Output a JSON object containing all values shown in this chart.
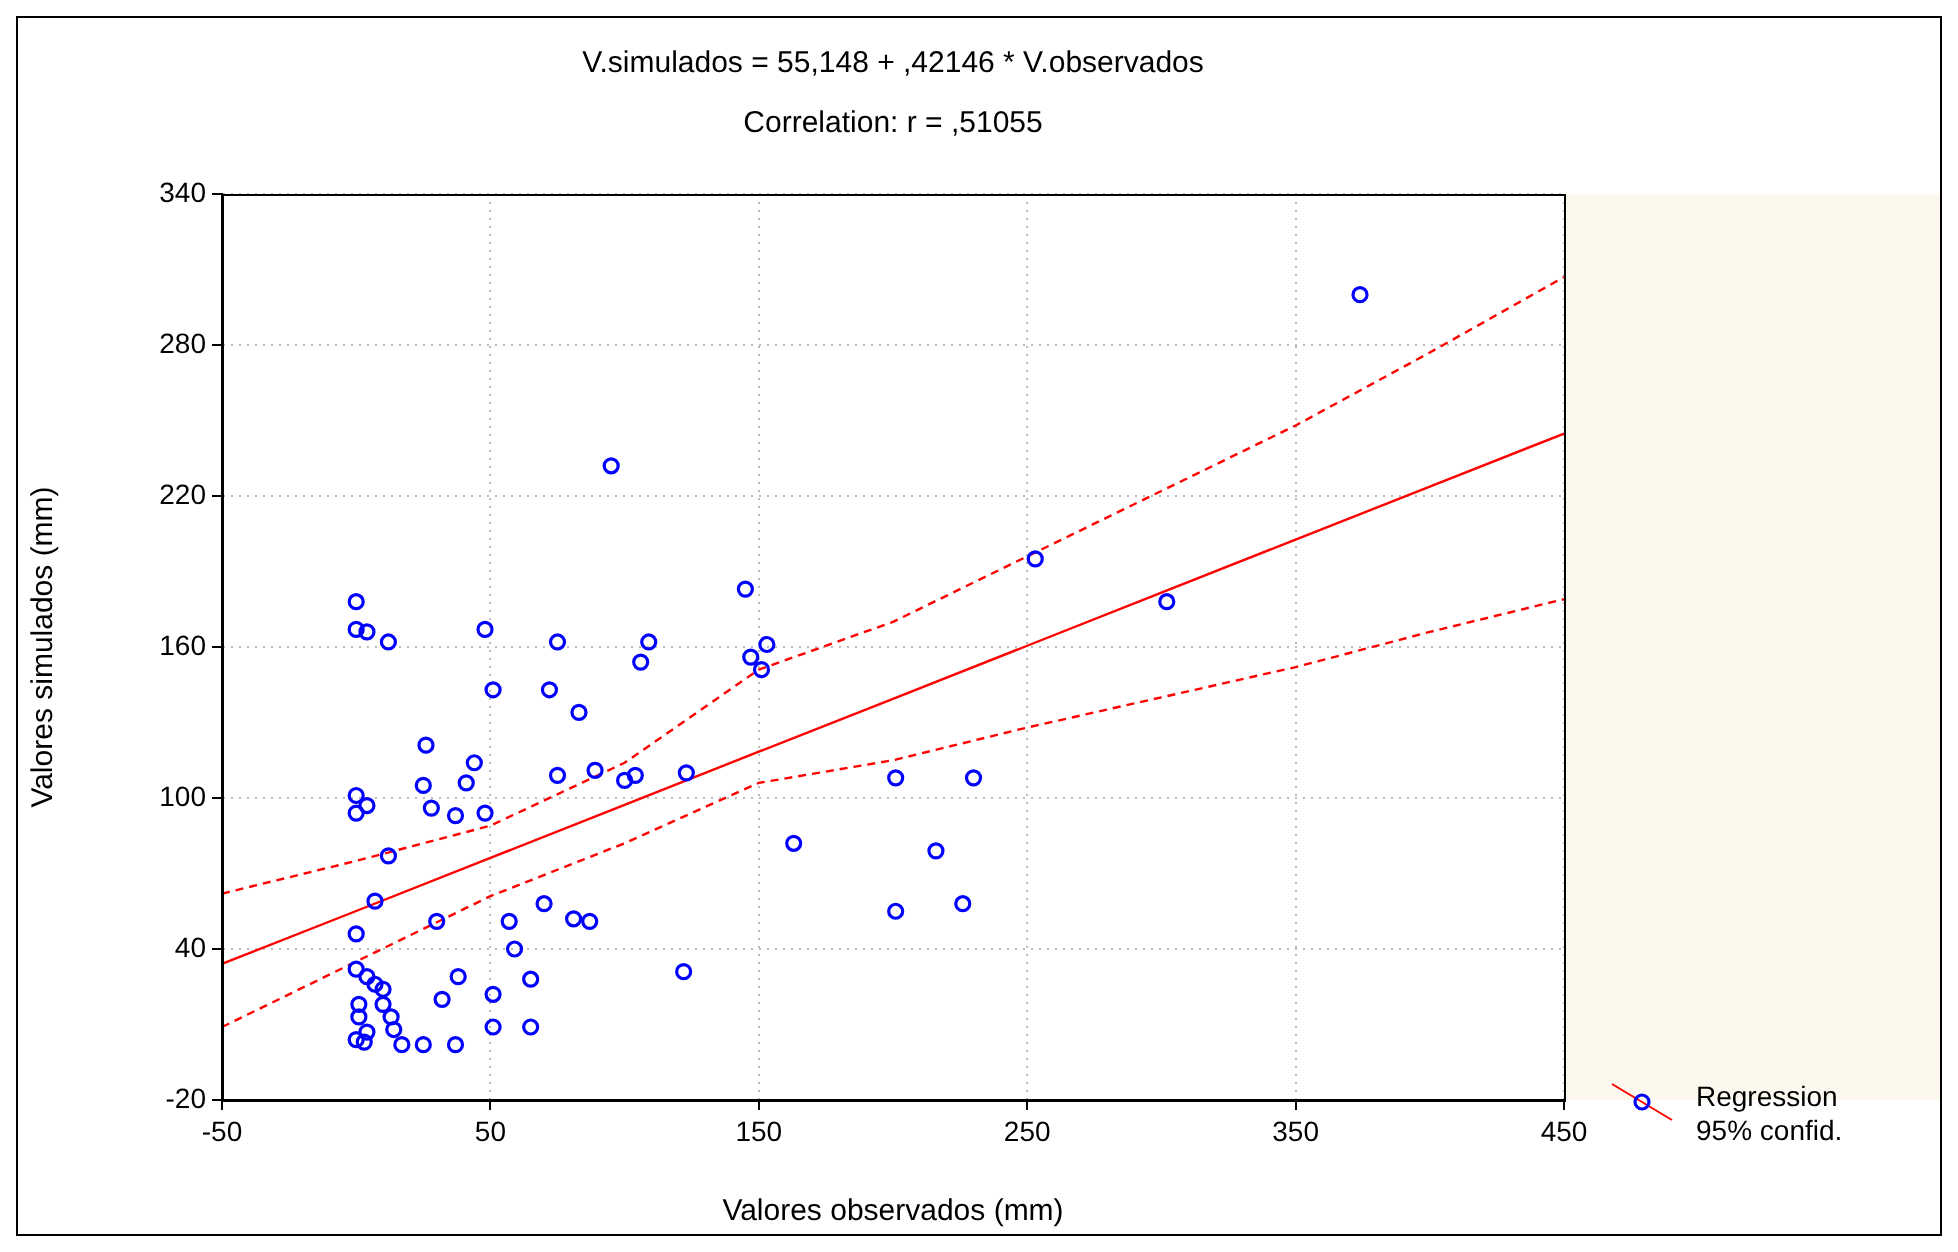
{
  "chart_data": {
    "type": "scatter",
    "title": "V.simulados = 55,148 + ,42146 * V.observados",
    "subtitle": "Correlation: r = ,51055",
    "xlabel": "Valores observados (mm)",
    "ylabel": "Valores simulados (mm)",
    "xlim": [
      -50,
      450
    ],
    "xticks": [
      -50,
      50,
      150,
      250,
      350,
      450
    ],
    "ylim": [
      -20,
      340
    ],
    "yticks": [
      -20,
      40,
      100,
      160,
      220,
      280,
      340
    ],
    "grid": true,
    "legend": "right",
    "marker": "circle",
    "series": [
      {
        "color": "#0000ff",
        "x": [
          0,
          0,
          4,
          12,
          48,
          75,
          106,
          109,
          145,
          147,
          151,
          153,
          51,
          72,
          83,
          26,
          25,
          44,
          41,
          28,
          37,
          48,
          0,
          0,
          4,
          75,
          89,
          100,
          104,
          123,
          163,
          12,
          7,
          0,
          30,
          57,
          70,
          81,
          87,
          59,
          0,
          4,
          7,
          10,
          38,
          65,
          51,
          32,
          1,
          1,
          10,
          13,
          4,
          0,
          3,
          14,
          17,
          25,
          37,
          51,
          65,
          122,
          95,
          253,
          374,
          302,
          201,
          230,
          216,
          201,
          226
        ],
        "values": [
          178,
          167,
          166,
          162,
          167,
          162,
          154,
          162,
          183,
          156,
          151,
          161,
          143,
          143,
          134,
          121,
          105,
          114,
          106,
          96,
          93,
          94,
          101,
          94,
          97,
          109,
          111,
          107,
          109,
          110,
          82,
          77,
          59,
          46,
          51,
          51,
          58,
          52,
          51,
          40,
          32,
          29,
          26,
          24,
          29,
          28,
          22,
          20,
          18,
          13,
          18,
          13,
          7,
          4,
          3,
          8,
          2,
          2,
          2,
          9,
          9,
          31,
          232,
          195,
          300,
          178,
          108,
          108,
          79,
          55,
          58
        ]
      },
      {
        "type": "line",
        "name": "Regression",
        "color": "#ff0000",
        "line_style": "solid",
        "marker": "none",
        "x": [
          -50,
          0,
          50,
          100,
          150,
          200,
          250,
          300,
          350,
          400,
          450
        ],
        "values": [
          34.1,
          55.1,
          76.2,
          97.3,
          118.4,
          139.4,
          160.5,
          181.6,
          202.7,
          223.7,
          244.8
        ]
      },
      {
        "type": "line",
        "color": "#ff0000",
        "line_style": "dashed",
        "marker": "none",
        "x": [
          -50,
          0,
          50,
          100,
          150,
          200,
          250,
          300,
          350,
          400,
          450
        ],
        "values": [
          9,
          35,
          61,
          82,
          106,
          115,
          128,
          140,
          152,
          166,
          179
        ]
      },
      {
        "type": "line",
        "color": "#ff0000",
        "line_style": "dashed",
        "marker": "none",
        "x": [
          -50,
          0,
          50,
          100,
          150,
          200,
          250,
          300,
          350,
          400,
          450
        ],
        "values": [
          62,
          75,
          89,
          114,
          151,
          170,
          196,
          222,
          248,
          277,
          307
        ]
      }
    ],
    "annotations": [
      "95% confid."
    ]
  }
}
